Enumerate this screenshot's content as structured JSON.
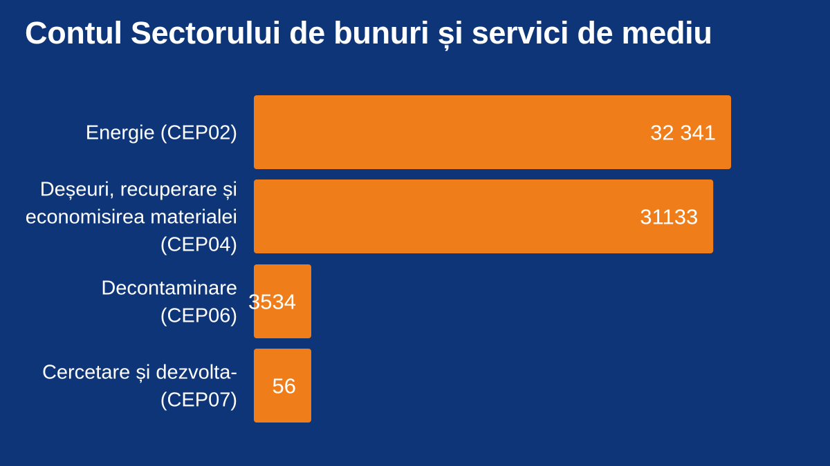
{
  "chart_data": {
    "type": "bar",
    "orientation": "horizontal",
    "title": "Contul Sectorului de bunuri și servici de mediu",
    "categories": [
      [
        "Energie (CEP02)"
      ],
      [
        "Deșeuri, recuperare și",
        "economisirea materialei",
        "(CEP04)"
      ],
      [
        "Decontaminare",
        "(CEP06)"
      ],
      [
        "Cercetare și dezvolta-",
        "(CEP07)"
      ]
    ],
    "values": [
      32341,
      31133,
      3534,
      56
    ],
    "value_labels": [
      "32 341",
      "31133",
      "3534",
      "56"
    ],
    "xlim": [
      0,
      32341
    ],
    "grid": false,
    "legend": "none",
    "colors": {
      "background": "#0d3578",
      "bar": "#ef7d1a",
      "text": "#ffffff"
    }
  }
}
